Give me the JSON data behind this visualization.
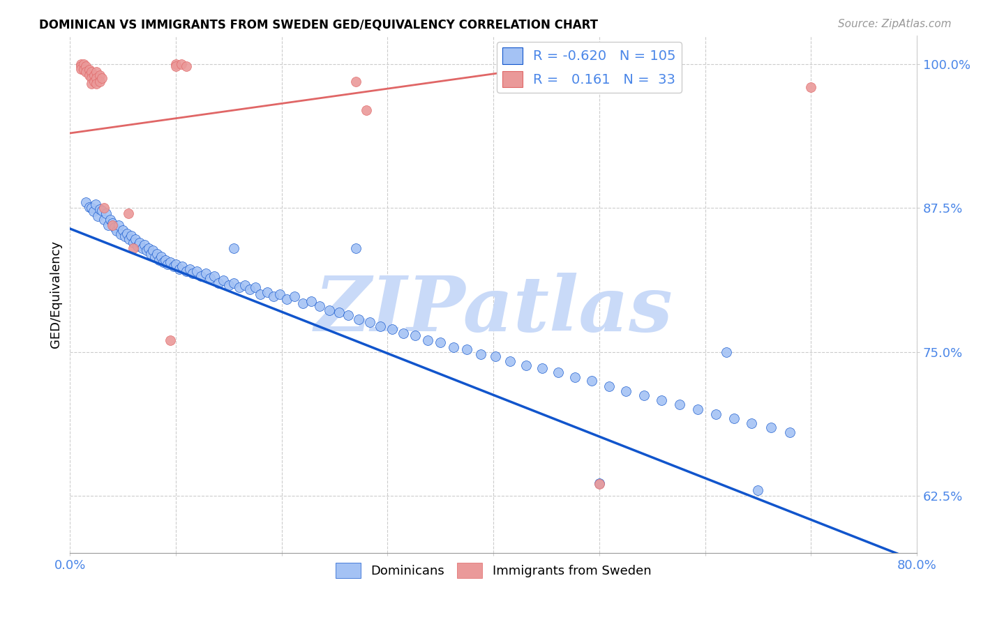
{
  "title": "DOMINICAN VS IMMIGRANTS FROM SWEDEN GED/EQUIVALENCY CORRELATION CHART",
  "source": "Source: ZipAtlas.com",
  "ylabel": "GED/Equivalency",
  "xlim": [
    0.0,
    0.8
  ],
  "ylim": [
    0.575,
    1.025
  ],
  "yticks": [
    0.625,
    0.75,
    0.875,
    1.0
  ],
  "ytick_labels": [
    "62.5%",
    "75.0%",
    "87.5%",
    "100.0%"
  ],
  "xticks": [
    0.0,
    0.1,
    0.2,
    0.3,
    0.4,
    0.5,
    0.6,
    0.7,
    0.8
  ],
  "legend_r_blue": "-0.620",
  "legend_n_blue": "105",
  "legend_r_pink": "0.161",
  "legend_n_pink": "33",
  "blue_color": "#a4c2f4",
  "pink_color": "#ea9999",
  "line_blue_color": "#1155cc",
  "line_pink_color": "#e06666",
  "axis_color": "#4a86e8",
  "watermark": "ZIPatlas",
  "watermark_color": "#c9daf8",
  "blue_scatter": [
    [
      0.015,
      0.88
    ],
    [
      0.018,
      0.876
    ],
    [
      0.02,
      0.875
    ],
    [
      0.022,
      0.872
    ],
    [
      0.024,
      0.878
    ],
    [
      0.026,
      0.868
    ],
    [
      0.028,
      0.874
    ],
    [
      0.03,
      0.873
    ],
    [
      0.032,
      0.865
    ],
    [
      0.034,
      0.87
    ],
    [
      0.036,
      0.86
    ],
    [
      0.038,
      0.865
    ],
    [
      0.04,
      0.862
    ],
    [
      0.042,
      0.858
    ],
    [
      0.044,
      0.855
    ],
    [
      0.046,
      0.86
    ],
    [
      0.048,
      0.852
    ],
    [
      0.05,
      0.856
    ],
    [
      0.052,
      0.85
    ],
    [
      0.054,
      0.853
    ],
    [
      0.056,
      0.848
    ],
    [
      0.058,
      0.851
    ],
    [
      0.06,
      0.845
    ],
    [
      0.062,
      0.848
    ],
    [
      0.064,
      0.842
    ],
    [
      0.066,
      0.845
    ],
    [
      0.068,
      0.84
    ],
    [
      0.07,
      0.843
    ],
    [
      0.072,
      0.838
    ],
    [
      0.074,
      0.84
    ],
    [
      0.076,
      0.835
    ],
    [
      0.078,
      0.838
    ],
    [
      0.08,
      0.832
    ],
    [
      0.082,
      0.835
    ],
    [
      0.084,
      0.83
    ],
    [
      0.086,
      0.833
    ],
    [
      0.088,
      0.828
    ],
    [
      0.09,
      0.83
    ],
    [
      0.092,
      0.826
    ],
    [
      0.095,
      0.828
    ],
    [
      0.098,
      0.824
    ],
    [
      0.1,
      0.826
    ],
    [
      0.103,
      0.822
    ],
    [
      0.106,
      0.824
    ],
    [
      0.11,
      0.82
    ],
    [
      0.113,
      0.822
    ],
    [
      0.116,
      0.818
    ],
    [
      0.12,
      0.82
    ],
    [
      0.124,
      0.816
    ],
    [
      0.128,
      0.818
    ],
    [
      0.132,
      0.814
    ],
    [
      0.136,
      0.816
    ],
    [
      0.14,
      0.81
    ],
    [
      0.145,
      0.812
    ],
    [
      0.15,
      0.808
    ],
    [
      0.155,
      0.81
    ],
    [
      0.16,
      0.806
    ],
    [
      0.165,
      0.808
    ],
    [
      0.17,
      0.804
    ],
    [
      0.175,
      0.806
    ],
    [
      0.18,
      0.8
    ],
    [
      0.186,
      0.802
    ],
    [
      0.192,
      0.798
    ],
    [
      0.198,
      0.8
    ],
    [
      0.205,
      0.796
    ],
    [
      0.212,
      0.798
    ],
    [
      0.22,
      0.792
    ],
    [
      0.228,
      0.794
    ],
    [
      0.236,
      0.79
    ],
    [
      0.245,
      0.786
    ],
    [
      0.254,
      0.784
    ],
    [
      0.263,
      0.782
    ],
    [
      0.273,
      0.778
    ],
    [
      0.283,
      0.776
    ],
    [
      0.293,
      0.772
    ],
    [
      0.304,
      0.77
    ],
    [
      0.315,
      0.766
    ],
    [
      0.326,
      0.764
    ],
    [
      0.338,
      0.76
    ],
    [
      0.35,
      0.758
    ],
    [
      0.362,
      0.754
    ],
    [
      0.375,
      0.752
    ],
    [
      0.388,
      0.748
    ],
    [
      0.402,
      0.746
    ],
    [
      0.416,
      0.742
    ],
    [
      0.431,
      0.738
    ],
    [
      0.446,
      0.736
    ],
    [
      0.461,
      0.732
    ],
    [
      0.477,
      0.728
    ],
    [
      0.493,
      0.725
    ],
    [
      0.509,
      0.72
    ],
    [
      0.525,
      0.716
    ],
    [
      0.542,
      0.712
    ],
    [
      0.559,
      0.708
    ],
    [
      0.576,
      0.704
    ],
    [
      0.593,
      0.7
    ],
    [
      0.61,
      0.696
    ],
    [
      0.627,
      0.692
    ],
    [
      0.644,
      0.688
    ],
    [
      0.662,
      0.684
    ],
    [
      0.68,
      0.68
    ],
    [
      0.155,
      0.84
    ],
    [
      0.27,
      0.84
    ],
    [
      0.5,
      0.636
    ],
    [
      0.62,
      0.75
    ],
    [
      0.65,
      0.63
    ]
  ],
  "pink_scatter": [
    [
      0.01,
      1.0
    ],
    [
      0.01,
      0.998
    ],
    [
      0.01,
      0.996
    ],
    [
      0.013,
      1.0
    ],
    [
      0.013,
      0.995
    ],
    [
      0.015,
      0.998
    ],
    [
      0.015,
      0.993
    ],
    [
      0.018,
      0.995
    ],
    [
      0.018,
      0.99
    ],
    [
      0.02,
      0.993
    ],
    [
      0.02,
      0.988
    ],
    [
      0.02,
      0.983
    ],
    [
      0.023,
      0.99
    ],
    [
      0.023,
      0.985
    ],
    [
      0.025,
      0.993
    ],
    [
      0.025,
      0.988
    ],
    [
      0.025,
      0.983
    ],
    [
      0.028,
      0.99
    ],
    [
      0.028,
      0.985
    ],
    [
      0.03,
      0.988
    ],
    [
      0.032,
      0.875
    ],
    [
      0.04,
      0.86
    ],
    [
      0.055,
      0.87
    ],
    [
      0.06,
      0.84
    ],
    [
      0.095,
      0.76
    ],
    [
      0.1,
      1.0
    ],
    [
      0.1,
      0.998
    ],
    [
      0.105,
      1.0
    ],
    [
      0.11,
      0.998
    ],
    [
      0.27,
      0.985
    ],
    [
      0.28,
      0.96
    ],
    [
      0.5,
      0.635
    ],
    [
      0.7,
      0.98
    ]
  ],
  "blue_trend_x": [
    0.0,
    0.8
  ],
  "blue_trend_y": [
    0.857,
    0.568
  ],
  "pink_trend_x": [
    0.0,
    0.45
  ],
  "pink_trend_y": [
    0.94,
    0.998
  ]
}
